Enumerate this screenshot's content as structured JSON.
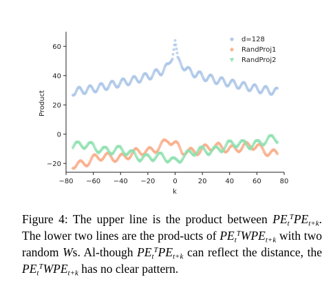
{
  "chart_data": {
    "type": "scatter",
    "xlabel": "k",
    "ylabel": "Product",
    "xlim": [
      -80,
      80
    ],
    "ylim": [
      -26,
      70
    ],
    "x_ticks": [
      -80,
      -60,
      -40,
      -20,
      0,
      20,
      40,
      60,
      80
    ],
    "y_ticks": [
      -20,
      0,
      20,
      40,
      60
    ],
    "grid": false,
    "legend_position": "top-right",
    "x_range": [
      -75,
      75
    ],
    "series": [
      {
        "name": "d=128",
        "color": "#aec7e8",
        "marker": "circle",
        "envelope_k": [
          0,
          2,
          5,
          10,
          20,
          30,
          40,
          50,
          60,
          75
        ],
        "envelope_value": [
          64,
          52,
          47,
          43,
          39.5,
          37,
          35,
          33,
          31,
          29
        ],
        "oscillation_amplitude": 2.5
      },
      {
        "name": "RandProj1",
        "color": "#f8b08e",
        "marker": "diamond",
        "baseline_k": [
          -75,
          -60,
          -40,
          -20,
          -5,
          0,
          5,
          20,
          40,
          60,
          75
        ],
        "baseline_value": [
          -21,
          -17,
          -15,
          -12,
          -4,
          -8,
          -12,
          -10,
          -9,
          -9,
          -13
        ],
        "oscillation_amplitude": 2.5
      },
      {
        "name": "RandProj2",
        "color": "#90e0b0",
        "marker": "triangle-down",
        "baseline_k": [
          -75,
          -60,
          -40,
          -20,
          -5,
          0,
          5,
          20,
          40,
          60,
          75
        ],
        "baseline_value": [
          -8,
          -9,
          -12,
          -16,
          -17,
          -18,
          -15,
          -12,
          -8,
          -6,
          -4
        ],
        "oscillation_amplitude": 2.5
      }
    ]
  },
  "caption": {
    "label": "Figure 4:",
    "t1": "The upper line is the product between",
    "t2": "The lower two lines are the prod-ucts of",
    "t3": "with two random",
    "t4": "s.  Al-though",
    "t5": "can reflect the distance, the",
    "t6": "has no clear pattern.",
    "pe": "PE",
    "w": "W",
    "sub_t": "t",
    "sup_T": "T",
    "sub_tk": "t+k",
    "dot": "."
  }
}
